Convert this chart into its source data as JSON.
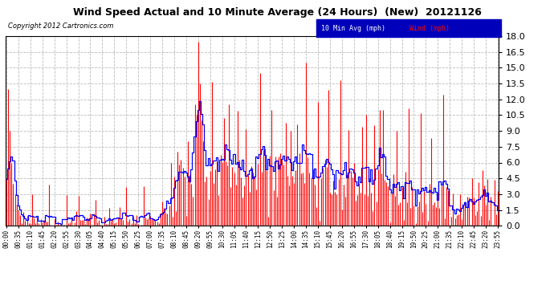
{
  "title": "Wind Speed Actual and 10 Minute Average (24 Hours)  (New)  20121126",
  "copyright": "Copyright 2012 Cartronics.com",
  "legend_labels": [
    "10 Min Avg (mph)",
    "Wind (mph)"
  ],
  "legend_colors": [
    "#0000ff",
    "#ff0000"
  ],
  "legend_bg": "#0000cc",
  "ylim": [
    0,
    18.0
  ],
  "yticks": [
    0.0,
    1.5,
    3.0,
    4.5,
    6.0,
    7.5,
    9.0,
    10.5,
    12.0,
    13.5,
    15.0,
    16.5,
    18.0
  ],
  "wind_color": "#ff0000",
  "avg_color": "#0000ff",
  "grid_color": "#bbbbbb",
  "bg_color": "#ffffff",
  "plot_bg": "#ffffff",
  "time_step_minutes": 5
}
